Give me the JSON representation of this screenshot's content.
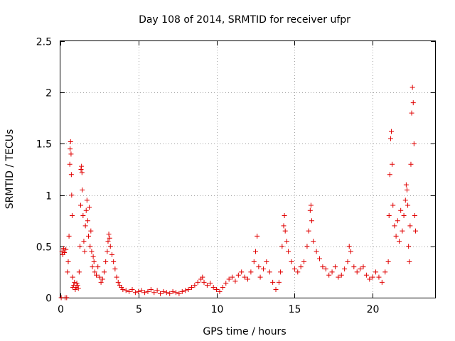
{
  "chart_data": {
    "type": "scatter",
    "title": "Day 108 of 2014, SRMTID for receiver ufpr",
    "xlabel": "GPS time / hours",
    "ylabel": "SRMTID / TECUs",
    "xlim": [
      0,
      24
    ],
    "ylim": [
      0,
      2.5
    ],
    "xticks": [
      0,
      5,
      10,
      15,
      20
    ],
    "yticks": [
      0,
      0.5,
      1,
      1.5,
      2,
      2.5
    ],
    "xtick_labels": [
      "0",
      "5",
      "10",
      "15",
      "20"
    ],
    "ytick_labels": [
      "0",
      "0.5",
      "1",
      "1.5",
      "2",
      "2.5"
    ],
    "grid": true,
    "marker": "+",
    "color": "#e00000",
    "series": [
      {
        "name": "SRMTID",
        "points": [
          [
            0.05,
            0.0
          ],
          [
            0.1,
            0.45
          ],
          [
            0.15,
            0.42
          ],
          [
            0.2,
            0.48
          ],
          [
            0.25,
            0.44
          ],
          [
            0.3,
            0.0
          ],
          [
            0.35,
            0.47
          ],
          [
            0.4,
            0.0
          ],
          [
            0.45,
            0.25
          ],
          [
            0.5,
            0.35
          ],
          [
            0.55,
            0.6
          ],
          [
            0.6,
            1.3
          ],
          [
            0.62,
            1.45
          ],
          [
            0.65,
            1.52
          ],
          [
            0.68,
            1.4
          ],
          [
            0.7,
            1.2
          ],
          [
            0.72,
            1.0
          ],
          [
            0.75,
            0.8
          ],
          [
            0.78,
            0.2
          ],
          [
            0.8,
            0.1
          ],
          [
            0.85,
            0.12
          ],
          [
            0.9,
            0.15
          ],
          [
            0.95,
            0.08
          ],
          [
            1.0,
            0.1
          ],
          [
            1.05,
            0.14
          ],
          [
            1.1,
            0.12
          ],
          [
            1.15,
            0.09
          ],
          [
            1.2,
            0.25
          ],
          [
            1.25,
            0.5
          ],
          [
            1.3,
            0.9
          ],
          [
            1.32,
            1.25
          ],
          [
            1.35,
            1.28
          ],
          [
            1.38,
            1.22
          ],
          [
            1.4,
            1.05
          ],
          [
            1.45,
            0.8
          ],
          [
            1.5,
            0.55
          ],
          [
            1.55,
            0.45
          ],
          [
            1.6,
            0.7
          ],
          [
            1.65,
            0.85
          ],
          [
            1.7,
            0.95
          ],
          [
            1.75,
            0.75
          ],
          [
            1.8,
            0.6
          ],
          [
            1.85,
            0.88
          ],
          [
            1.9,
            0.5
          ],
          [
            1.95,
            0.65
          ],
          [
            2.0,
            0.45
          ],
          [
            2.05,
            0.3
          ],
          [
            2.1,
            0.4
          ],
          [
            2.15,
            0.35
          ],
          [
            2.2,
            0.25
          ],
          [
            2.3,
            0.22
          ],
          [
            2.4,
            0.3
          ],
          [
            2.5,
            0.2
          ],
          [
            2.6,
            0.15
          ],
          [
            2.7,
            0.18
          ],
          [
            2.8,
            0.25
          ],
          [
            2.9,
            0.35
          ],
          [
            3.0,
            0.45
          ],
          [
            3.05,
            0.55
          ],
          [
            3.1,
            0.62
          ],
          [
            3.15,
            0.58
          ],
          [
            3.2,
            0.5
          ],
          [
            3.3,
            0.42
          ],
          [
            3.4,
            0.35
          ],
          [
            3.5,
            0.28
          ],
          [
            3.6,
            0.2
          ],
          [
            3.7,
            0.15
          ],
          [
            3.8,
            0.12
          ],
          [
            3.9,
            0.1
          ],
          [
            4.0,
            0.08
          ],
          [
            4.2,
            0.07
          ],
          [
            4.4,
            0.06
          ],
          [
            4.6,
            0.08
          ],
          [
            4.8,
            0.05
          ],
          [
            5.0,
            0.06
          ],
          [
            5.2,
            0.07
          ],
          [
            5.4,
            0.05
          ],
          [
            5.6,
            0.06
          ],
          [
            5.8,
            0.08
          ],
          [
            6.0,
            0.05
          ],
          [
            6.2,
            0.07
          ],
          [
            6.4,
            0.04
          ],
          [
            6.6,
            0.06
          ],
          [
            6.8,
            0.05
          ],
          [
            7.0,
            0.04
          ],
          [
            7.2,
            0.06
          ],
          [
            7.4,
            0.05
          ],
          [
            7.6,
            0.04
          ],
          [
            7.8,
            0.06
          ],
          [
            8.0,
            0.07
          ],
          [
            8.2,
            0.08
          ],
          [
            8.4,
            0.1
          ],
          [
            8.6,
            0.12
          ],
          [
            8.8,
            0.15
          ],
          [
            9.0,
            0.18
          ],
          [
            9.1,
            0.2
          ],
          [
            9.2,
            0.15
          ],
          [
            9.4,
            0.12
          ],
          [
            9.6,
            0.14
          ],
          [
            9.8,
            0.1
          ],
          [
            10.0,
            0.08
          ],
          [
            10.2,
            0.06
          ],
          [
            10.4,
            0.1
          ],
          [
            10.6,
            0.14
          ],
          [
            10.8,
            0.18
          ],
          [
            11.0,
            0.2
          ],
          [
            11.2,
            0.16
          ],
          [
            11.4,
            0.22
          ],
          [
            11.6,
            0.25
          ],
          [
            11.8,
            0.2
          ],
          [
            12.0,
            0.18
          ],
          [
            12.2,
            0.25
          ],
          [
            12.4,
            0.35
          ],
          [
            12.5,
            0.45
          ],
          [
            12.6,
            0.6
          ],
          [
            12.7,
            0.3
          ],
          [
            12.8,
            0.2
          ],
          [
            13.0,
            0.28
          ],
          [
            13.2,
            0.35
          ],
          [
            13.4,
            0.25
          ],
          [
            13.6,
            0.15
          ],
          [
            13.8,
            0.08
          ],
          [
            14.0,
            0.15
          ],
          [
            14.1,
            0.25
          ],
          [
            14.2,
            0.5
          ],
          [
            14.3,
            0.7
          ],
          [
            14.35,
            0.8
          ],
          [
            14.4,
            0.65
          ],
          [
            14.5,
            0.55
          ],
          [
            14.6,
            0.45
          ],
          [
            14.8,
            0.35
          ],
          [
            15.0,
            0.28
          ],
          [
            15.2,
            0.25
          ],
          [
            15.4,
            0.3
          ],
          [
            15.6,
            0.35
          ],
          [
            15.8,
            0.5
          ],
          [
            15.9,
            0.65
          ],
          [
            16.0,
            0.85
          ],
          [
            16.05,
            0.9
          ],
          [
            16.1,
            0.75
          ],
          [
            16.2,
            0.55
          ],
          [
            16.4,
            0.45
          ],
          [
            16.6,
            0.38
          ],
          [
            16.8,
            0.3
          ],
          [
            17.0,
            0.28
          ],
          [
            17.2,
            0.22
          ],
          [
            17.4,
            0.25
          ],
          [
            17.6,
            0.3
          ],
          [
            17.8,
            0.2
          ],
          [
            18.0,
            0.22
          ],
          [
            18.2,
            0.28
          ],
          [
            18.4,
            0.35
          ],
          [
            18.5,
            0.5
          ],
          [
            18.6,
            0.45
          ],
          [
            18.8,
            0.3
          ],
          [
            19.0,
            0.25
          ],
          [
            19.2,
            0.28
          ],
          [
            19.4,
            0.3
          ],
          [
            19.6,
            0.22
          ],
          [
            19.8,
            0.18
          ],
          [
            20.0,
            0.2
          ],
          [
            20.2,
            0.25
          ],
          [
            20.4,
            0.2
          ],
          [
            20.6,
            0.15
          ],
          [
            20.8,
            0.25
          ],
          [
            21.0,
            0.35
          ],
          [
            21.05,
            0.8
          ],
          [
            21.1,
            1.2
          ],
          [
            21.15,
            1.55
          ],
          [
            21.2,
            1.62
          ],
          [
            21.25,
            1.3
          ],
          [
            21.3,
            0.9
          ],
          [
            21.4,
            0.7
          ],
          [
            21.5,
            0.6
          ],
          [
            21.6,
            0.75
          ],
          [
            21.7,
            0.55
          ],
          [
            21.8,
            0.85
          ],
          [
            21.9,
            0.65
          ],
          [
            22.0,
            0.8
          ],
          [
            22.1,
            0.95
          ],
          [
            22.15,
            1.1
          ],
          [
            22.2,
            1.05
          ],
          [
            22.25,
            0.9
          ],
          [
            22.3,
            0.5
          ],
          [
            22.35,
            0.35
          ],
          [
            22.4,
            0.7
          ],
          [
            22.45,
            1.3
          ],
          [
            22.5,
            1.8
          ],
          [
            22.55,
            2.05
          ],
          [
            22.6,
            1.9
          ],
          [
            22.65,
            1.5
          ],
          [
            22.7,
            0.8
          ],
          [
            22.75,
            0.65
          ]
        ]
      }
    ]
  }
}
